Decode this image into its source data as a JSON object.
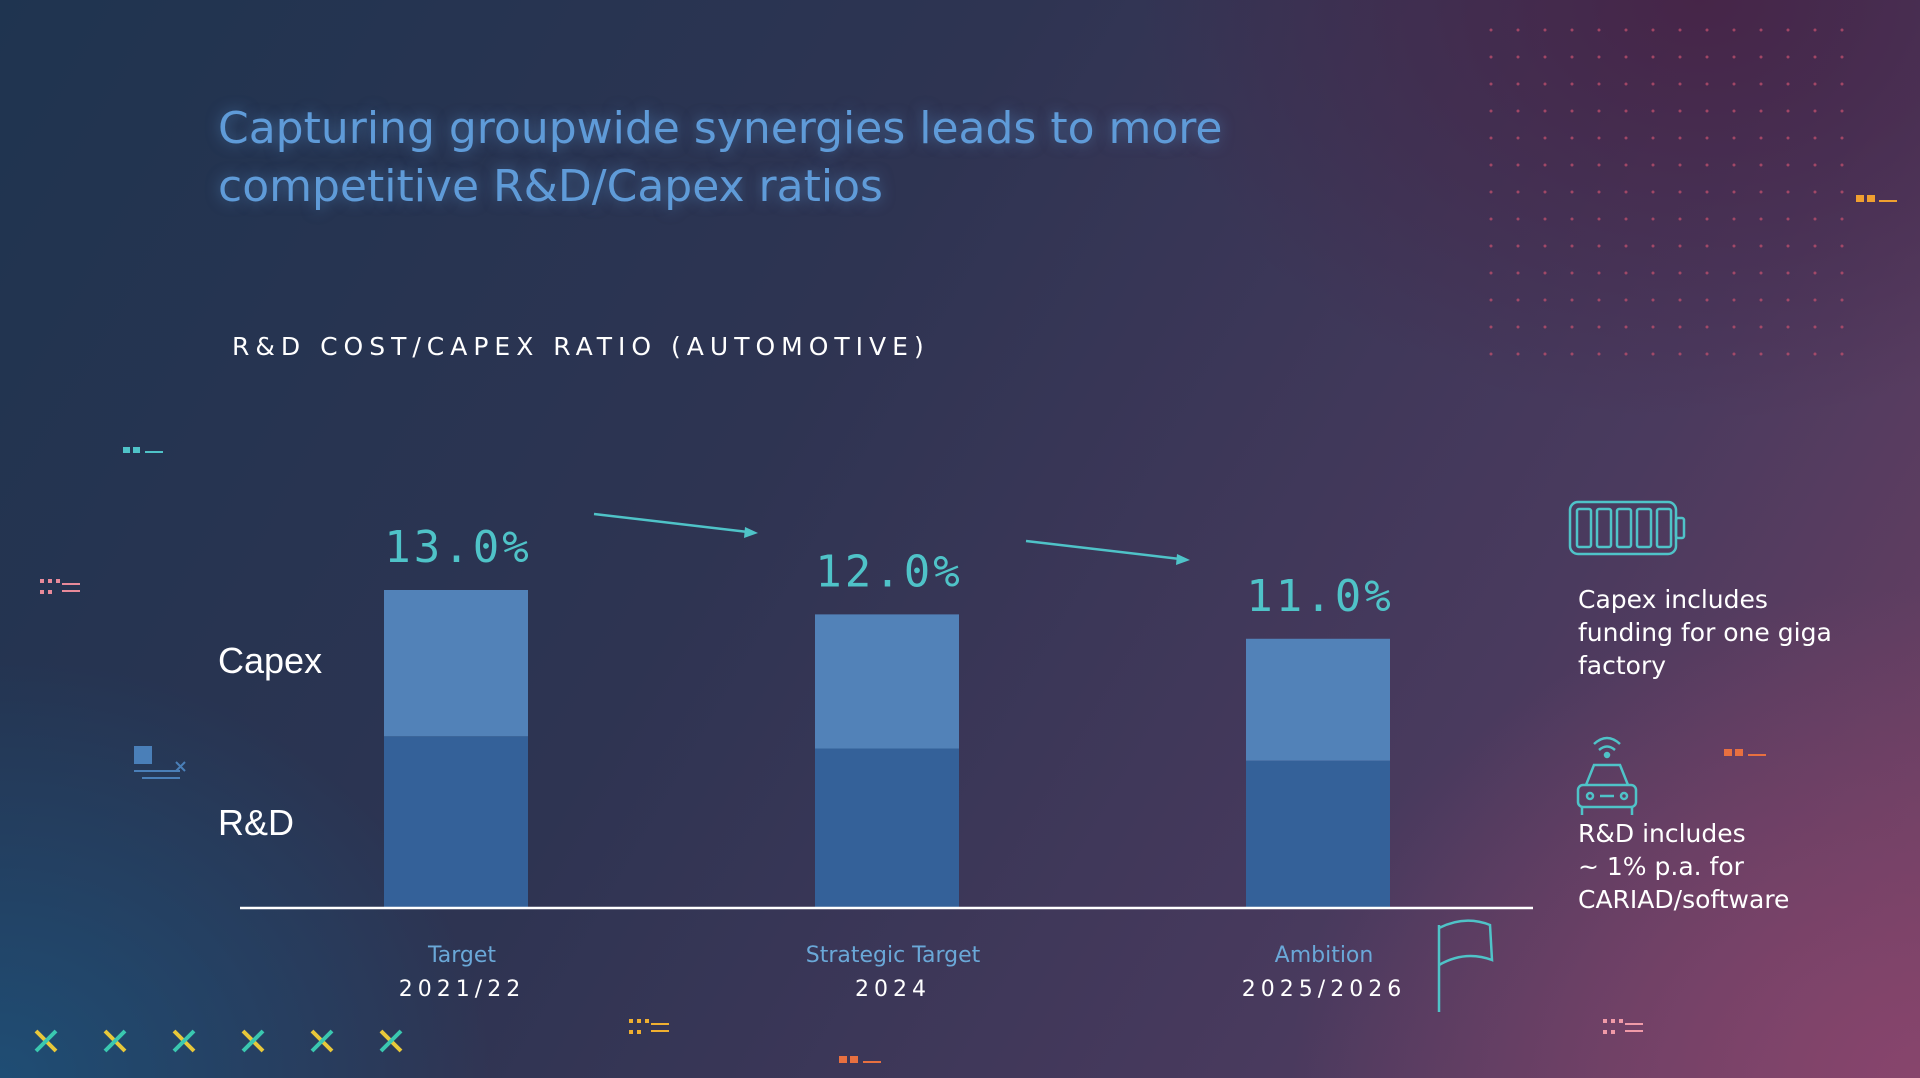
{
  "title_line1": "Capturing groupwide synergies leads to more",
  "title_line2": "competitive R&D/Capex  ratios",
  "labels": {
    "capex": "Capex",
    "rd": "R&D"
  },
  "notes": {
    "capex_note": [
      "Capex includes",
      "funding for one giga",
      "factory"
    ],
    "rd_note": [
      "R&D includes",
      "~ 1% p.a. for",
      "CARIAD/software"
    ]
  },
  "colors": {
    "title": "#5f9bd8",
    "total_label": "#4fc3c8",
    "capex": "#5282b8",
    "rd": "#346199",
    "category_label": "#6aa8d8",
    "icon": "#4fc3c8"
  },
  "icons": [
    "battery-icon",
    "connected-car-icon",
    "flag-icon"
  ],
  "chart_data": {
    "type": "bar",
    "stacked": true,
    "title": "R&D COST/CAPEX RATIO (AUTOMOTIVE)",
    "categories": [
      "Target",
      "Strategic Target",
      "Ambition"
    ],
    "periods": [
      "2021/22",
      "2024",
      "2025/2026"
    ],
    "totals": [
      "13.0%",
      "12.0%",
      "11.0%"
    ],
    "total_values": [
      13.0,
      12.0,
      11.0
    ],
    "series": [
      {
        "name": "R&D",
        "values": [
          7.0,
          6.5,
          6.0
        ]
      },
      {
        "name": "Capex",
        "values": [
          6.0,
          5.5,
          5.0
        ]
      }
    ],
    "ylim": [
      0,
      13.0
    ]
  }
}
